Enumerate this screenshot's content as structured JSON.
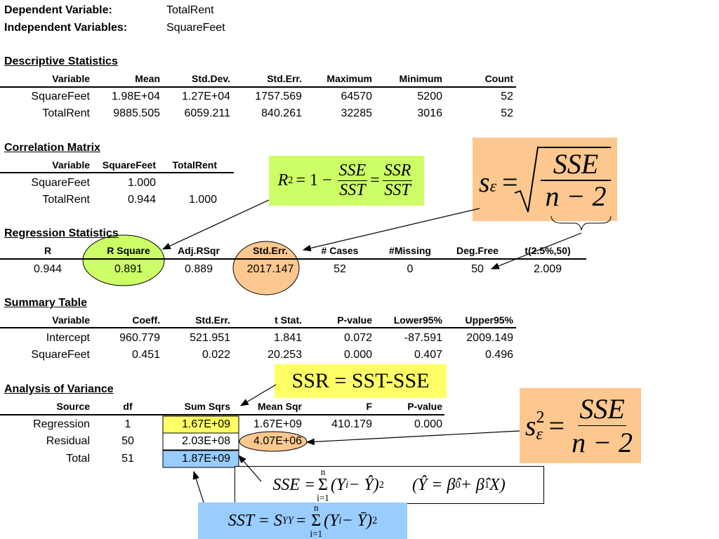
{
  "header": {
    "dependent_label": "Dependent Variable:",
    "dependent": "TotalRent",
    "independent_label": "Independent Variables:",
    "independent": "SquareFeet"
  },
  "descriptive": {
    "title": "Descriptive Statistics",
    "columns": [
      "Variable",
      "Mean",
      "Std.Dev.",
      "Std.Err.",
      "Maximum",
      "Minimum",
      "Count"
    ],
    "rows": [
      [
        "SquareFeet",
        "1.98E+04",
        "1.27E+04",
        "1757.569",
        "64570",
        "5200",
        "52"
      ],
      [
        "TotalRent",
        "9885.505",
        "6059.211",
        "840.261",
        "32285",
        "3016",
        "52"
      ]
    ]
  },
  "correlation": {
    "title": "Correlation Matrix",
    "columns": [
      "Variable",
      "SquareFeet",
      "TotalRent"
    ],
    "rows": [
      [
        "SquareFeet",
        "1.000"
      ],
      [
        "TotalRent",
        "0.944",
        "1.000"
      ]
    ]
  },
  "regression": {
    "title": "Regression Statistics",
    "columns": [
      "R",
      "R Square",
      "Adj.RSqr",
      "Std.Err.",
      "# Cases",
      "#Missing",
      "Deg.Free",
      "t(2.5%,50)"
    ],
    "rows": [
      [
        "0.944",
        "0.891",
        "0.889",
        "2017.147",
        "52",
        "0",
        "50",
        "2.009"
      ]
    ]
  },
  "summary": {
    "title": "Summary Table",
    "columns": [
      "Variable",
      "Coeff.",
      "Std.Err.",
      "t Stat.",
      "P-value",
      "Lower95%",
      "Upper95%"
    ],
    "rows": [
      [
        "Intercept",
        "960.779",
        "521.951",
        "1.841",
        "0.072",
        "-87.591",
        "2009.149"
      ],
      [
        "SquareFeet",
        "0.451",
        "0.022",
        "20.253",
        "0.000",
        "0.407",
        "0.496"
      ]
    ]
  },
  "anova": {
    "title": "Analysis of Variance",
    "columns": [
      "Source",
      "df",
      "Sum Sqrs",
      "Mean Sqr",
      "F",
      "P-value"
    ],
    "rows": [
      [
        "Regression",
        "1",
        "1.67E+09",
        "1.67E+09",
        "410.179",
        "0.000"
      ],
      [
        "Residual",
        "50",
        "2.03E+08",
        "4.07E+06"
      ],
      [
        "Total",
        "51",
        "1.87E+09"
      ]
    ]
  },
  "callouts": {
    "r_square": [
      "R",
      "2",
      "= 1 −",
      "SSE",
      "SST",
      "=",
      "SSR",
      "SST"
    ],
    "s_epsilon": [
      "s",
      "ε",
      "=",
      "SSE",
      "n − 2"
    ],
    "ssr": "SSR = SST-SSE",
    "s_epsilon_sq": [
      "s",
      "2",
      "ε",
      "=",
      "SSE",
      "n − 2"
    ],
    "sse": [
      "SSE =",
      "Σ",
      "n",
      "i=1",
      "(Y",
      "i",
      "− Ŷ)",
      "2",
      "(Ŷ = β̂",
      "0",
      "+ β̂",
      "1",
      "X)"
    ],
    "sst": [
      "SST = S",
      "YY",
      "=",
      "Σ",
      "n",
      "i=1",
      "(Y",
      "i",
      "− Ȳ)",
      "2"
    ]
  }
}
